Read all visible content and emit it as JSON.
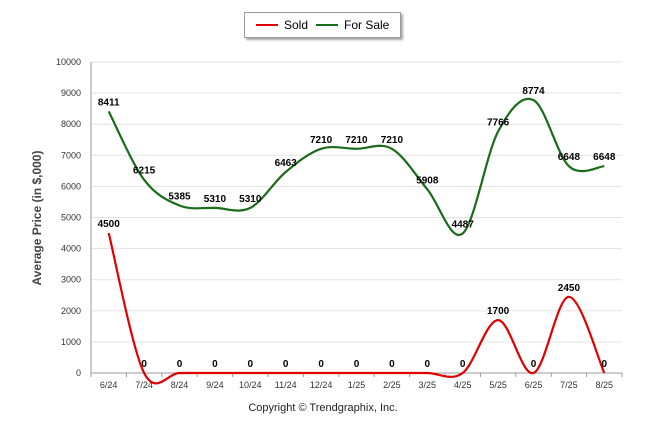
{
  "chart_data": {
    "type": "line",
    "categories": [
      "6/24",
      "7/24",
      "8/24",
      "9/24",
      "10/24",
      "11/24",
      "12/24",
      "1/25",
      "2/25",
      "3/25",
      "4/25",
      "5/25",
      "6/25",
      "7/25",
      "8/25"
    ],
    "series": [
      {
        "name": "Sold",
        "color": "#e00000",
        "values": [
          4500,
          0,
          0,
          0,
          0,
          0,
          0,
          0,
          0,
          0,
          0,
          1700,
          0,
          2450,
          0
        ]
      },
      {
        "name": "For Sale",
        "color": "#1a6b1a",
        "values": [
          8411,
          6215,
          5385,
          5310,
          5310,
          6463,
          7210,
          7210,
          7210,
          5908,
          4487,
          7766,
          8774,
          6648,
          6648
        ]
      }
    ],
    "ylabel": "Average Price (in $,000)",
    "ylim": [
      0,
      10000
    ],
    "yticks": [
      "0",
      "1000",
      "2000",
      "3000",
      "4000",
      "5000",
      "6000",
      "7000",
      "8000",
      "9000",
      "10000"
    ],
    "grid": true,
    "legend_position": "top-center",
    "smooth": true
  },
  "footer": {
    "copyright": "Copyright © Trendgraphix, Inc."
  }
}
